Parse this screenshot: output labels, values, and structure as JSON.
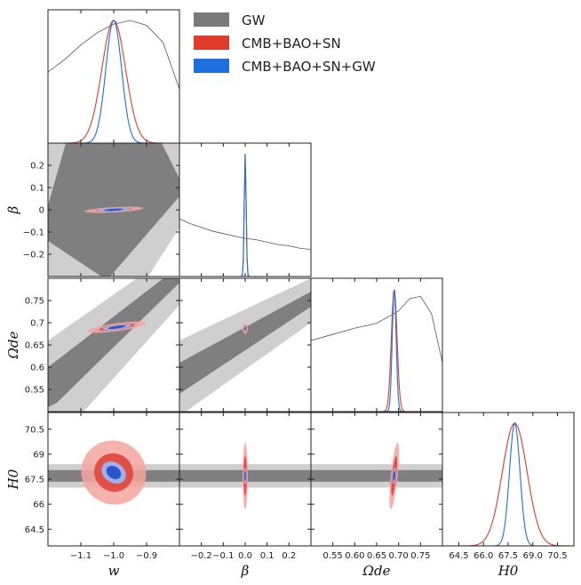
{
  "chart_data": {
    "type": "corner-plot",
    "parameters": [
      {
        "key": "w",
        "label": "w",
        "range": [
          -1.2,
          -0.8
        ],
        "ticks": [
          -1.1,
          -1.0,
          -0.9
        ],
        "tick_labels": [
          "−1.1",
          "−1.0",
          "−0.9"
        ]
      },
      {
        "key": "beta",
        "label": "β",
        "range": [
          -0.3,
          0.3
        ],
        "ticks": [
          -0.2,
          -0.1,
          0.0,
          0.1,
          0.2
        ],
        "tick_labels": [
          "−0.2",
          "−0.1",
          "0.0",
          "0.1",
          "0.2"
        ],
        "y_tick_labels": [
          "−0.2",
          "−0.1",
          "0",
          "0.1",
          "0.2"
        ]
      },
      {
        "key": "omega_de",
        "label": "Ωde",
        "range": [
          0.5,
          0.8
        ],
        "ticks": [
          0.55,
          0.6,
          0.65,
          0.7,
          0.75
        ],
        "tick_labels": [
          "0.55",
          "0.60",
          "0.65",
          "0.70",
          "0.75"
        ],
        "y_tick_labels": [
          "0.55",
          "0.6",
          "0.65",
          "0.7",
          "0.75"
        ]
      },
      {
        "key": "H0",
        "label": "H0",
        "range": [
          63.5,
          71.5
        ],
        "ticks": [
          64.5,
          66.0,
          67.5,
          69.0,
          70.5
        ],
        "tick_labels": [
          "64.5",
          "66.0",
          "67.5",
          "69.0",
          "70.5"
        ],
        "y_tick_labels": [
          "64.5",
          "66",
          "67.5",
          "69",
          "70.5"
        ]
      }
    ],
    "series": [
      {
        "name": "GW",
        "color": "#7a7a7a"
      },
      {
        "name": "CMB+BAO+SN",
        "color": "#e03c2c"
      },
      {
        "name": "CMB+BAO+SN+GW",
        "color": "#1f6fe0"
      }
    ],
    "marginals": {
      "w": {
        "GW": [
          [
            -1.2,
            0.58
          ],
          [
            -1.15,
            0.68
          ],
          [
            -1.1,
            0.8
          ],
          [
            -1.05,
            0.9
          ],
          [
            -1.0,
            0.97
          ],
          [
            -0.95,
            1.0
          ],
          [
            -0.9,
            0.96
          ],
          [
            -0.85,
            0.82
          ],
          [
            -0.8,
            0.44
          ]
        ],
        "CMB+BAO+SN": {
          "mean": -1.0,
          "sigma": 0.036
        },
        "CMB+BAO+SN+GW": {
          "mean": -1.0,
          "sigma": 0.024
        }
      },
      "beta": {
        "GW": [
          [
            -0.3,
            0.47
          ],
          [
            -0.25,
            0.43
          ],
          [
            -0.2,
            0.4
          ],
          [
            -0.15,
            0.37
          ],
          [
            -0.1,
            0.35
          ],
          [
            -0.05,
            0.33
          ],
          [
            0.0,
            0.31
          ],
          [
            0.05,
            0.3
          ],
          [
            0.1,
            0.28
          ],
          [
            0.15,
            0.26
          ],
          [
            0.2,
            0.25
          ],
          [
            0.25,
            0.23
          ],
          [
            0.3,
            0.22
          ]
        ],
        "CMB+BAO+SN": {
          "mean": 0.0,
          "sigma": 0.0045
        },
        "CMB+BAO+SN+GW": {
          "mean": 0.0,
          "sigma": 0.0042
        }
      },
      "omega_de": {
        "GW": [
          [
            0.5,
            0.58
          ],
          [
            0.55,
            0.63
          ],
          [
            0.6,
            0.68
          ],
          [
            0.65,
            0.72
          ],
          [
            0.7,
            0.82
          ],
          [
            0.725,
            0.92
          ],
          [
            0.75,
            0.94
          ],
          [
            0.775,
            0.8
          ],
          [
            0.8,
            0.4
          ]
        ],
        "CMB+BAO+SN": {
          "mean": 0.69,
          "sigma": 0.0065
        },
        "CMB+BAO+SN+GW": {
          "mean": 0.69,
          "sigma": 0.0045
        }
      },
      "H0": {
        "CMB+BAO+SN": {
          "mean": 67.9,
          "sigma": 0.75
        },
        "CMB+BAO+SN+GW": {
          "mean": 67.9,
          "sigma": 0.32
        }
      }
    },
    "joint": [
      {
        "x": "w",
        "y": "beta",
        "GW": {
          "bands": [
            [
              -1.2,
              -0.18,
              0.04,
              0.22,
              0.36
            ],
            [
              -0.8,
              0.12,
              0.33,
              0.52,
              0.7
            ]
          ],
          "note": "tilted bands"
        },
        "CMB+BAO+SN": {
          "cx": -1.0,
          "cy": 0.0,
          "sx": 0.09,
          "sy": 0.012,
          "angle": -3
        },
        "CMB+BAO+SN+GW": {
          "cx": -1.0,
          "cy": 0.0,
          "sx": 0.05,
          "sy": 0.008,
          "angle": -3
        }
      },
      {
        "x": "w",
        "y": "omega_de",
        "CMB+BAO+SN": {
          "cx": -0.99,
          "cy": 0.69,
          "sx": 0.09,
          "sy": 0.009,
          "angle": -8
        },
        "CMB+BAO+SN+GW": {
          "cx": -0.99,
          "cy": 0.69,
          "sx": 0.045,
          "sy": 0.005,
          "angle": -8
        }
      },
      {
        "x": "beta",
        "y": "omega_de",
        "CMB+BAO+SN": {
          "cx": 0.0,
          "cy": 0.687,
          "sx": 0.012,
          "sy": 0.012,
          "angle": 0
        },
        "CMB+BAO+SN+GW": {
          "cx": 0.0,
          "cy": 0.687,
          "sx": 0.006,
          "sy": 0.006,
          "angle": 0
        }
      },
      {
        "x": "w",
        "y": "H0",
        "CMB+BAO+SN": {
          "cx": -1.0,
          "cy": 67.9,
          "sx": 0.1,
          "sy": 1.9,
          "angle": 35
        },
        "CMB+BAO+SN+GW": {
          "cx": -1.0,
          "cy": 67.9,
          "sx": 0.04,
          "sy": 0.6,
          "angle": 35
        }
      },
      {
        "x": "beta",
        "y": "H0",
        "CMB+BAO+SN": {
          "cx": 0.0,
          "cy": 67.7,
          "sx": 0.012,
          "sy": 2.0,
          "angle": 0
        },
        "CMB+BAO+SN+GW": {
          "cx": 0.0,
          "cy": 67.7,
          "sx": 0.006,
          "sy": 0.5,
          "angle": 0
        }
      },
      {
        "x": "omega_de",
        "y": "H0",
        "CMB+BAO+SN": {
          "cx": 0.69,
          "cy": 67.7,
          "sx": 0.008,
          "sy": 2.0,
          "angle": 6
        },
        "CMB+BAO+SN+GW": {
          "cx": 0.69,
          "cy": 67.7,
          "sx": 0.004,
          "sy": 0.5,
          "angle": 6
        }
      }
    ],
    "legend": {
      "position": "top-right"
    }
  }
}
